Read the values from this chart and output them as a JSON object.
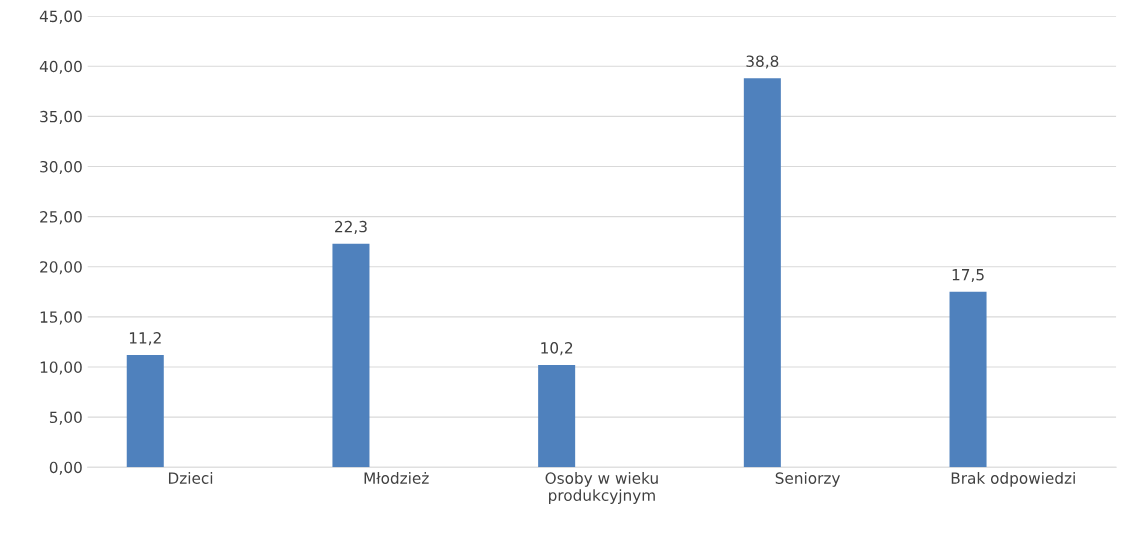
{
  "chart_data": {
    "type": "bar",
    "categories": [
      "Dzieci",
      "Młodzież",
      "Osoby w wieku produkcyjnym",
      "Seniorzy",
      "Brak odpowiedzi"
    ],
    "values": [
      11.2,
      22.3,
      10.2,
      38.8,
      17.5
    ],
    "color": "#4f81bd",
    "value_labels": [
      "11,2",
      "22,3",
      "10,2",
      "38,8",
      "17,5"
    ],
    "ylim": [
      0,
      45
    ],
    "yticks": [
      {
        "value": 0,
        "label": "0,00"
      },
      {
        "value": 5,
        "label": "5,00"
      },
      {
        "value": 10,
        "label": "10,00"
      },
      {
        "value": 15,
        "label": "15,00"
      },
      {
        "value": 20,
        "label": "20,00"
      },
      {
        "value": 25,
        "label": "25,00"
      },
      {
        "value": 30,
        "label": "30,00"
      },
      {
        "value": 35,
        "label": "35,00"
      },
      {
        "value": 40,
        "label": "40,00"
      },
      {
        "value": 45,
        "label": "45,00"
      }
    ],
    "grid": "y",
    "legend": false
  }
}
